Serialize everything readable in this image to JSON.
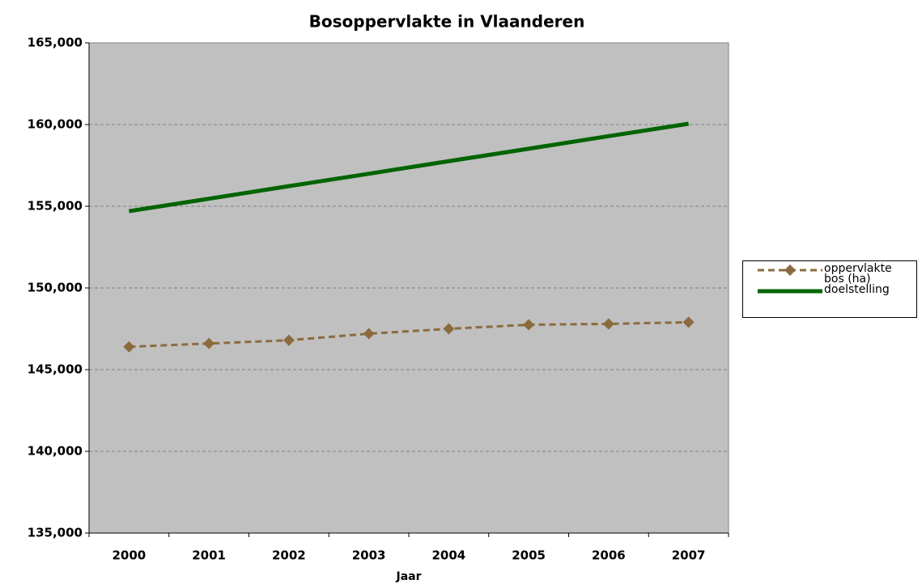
{
  "chart_data": {
    "type": "line",
    "title": "Bosoppervlakte in Vlaanderen",
    "x_label": "Jaar",
    "categories": [
      "2000",
      "2001",
      "2002",
      "2003",
      "2004",
      "2005",
      "2006",
      "2007"
    ],
    "series": [
      {
        "name": "oppervlakte bos (ha)",
        "color": "#8b6b3d",
        "dashed": true,
        "marker": "diamond",
        "values": [
          146400,
          146600,
          146800,
          147200,
          147500,
          147750,
          147800,
          147900
        ]
      },
      {
        "name": "doelstelling",
        "color": "#006400",
        "dashed": false,
        "marker": "none",
        "values": [
          154700,
          155460,
          156230,
          156990,
          157760,
          158520,
          159290,
          160050
        ]
      }
    ],
    "ylim": [
      135000,
      165000
    ],
    "yticks": [
      {
        "value": 135000,
        "label": "135,000"
      },
      {
        "value": 140000,
        "label": "140,000"
      },
      {
        "value": 145000,
        "label": "145,000"
      },
      {
        "value": 150000,
        "label": "150,000"
      },
      {
        "value": 155000,
        "label": "155,000"
      },
      {
        "value": 160000,
        "label": "160,000"
      },
      {
        "value": 165000,
        "label": "165,000"
      }
    ],
    "grid": true,
    "legend": "right",
    "plot_background": "#c0c0c0"
  }
}
